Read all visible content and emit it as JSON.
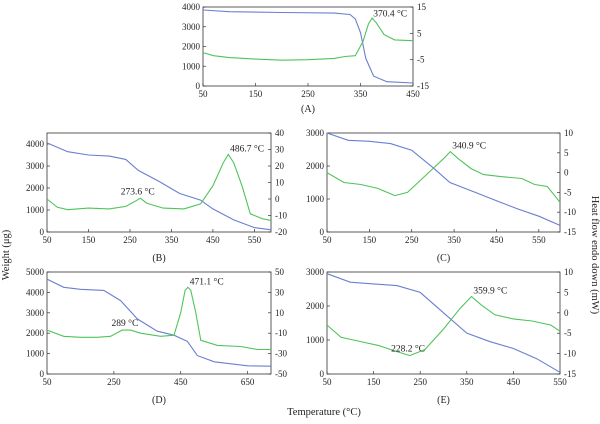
{
  "figure": {
    "y_left_label": "Weight (μg)",
    "y_right_label": "Heat flow endo down (mW)",
    "x_label": "Temperature (°C)"
  },
  "colors": {
    "weight": "#6a7fd0",
    "heatflow": "#4fc45a",
    "axis": "#333333"
  },
  "chart_data": [
    {
      "panel": "(A)",
      "type": "line",
      "x_ticks": [
        50,
        150,
        250,
        350,
        450
      ],
      "xlim": [
        50,
        450
      ],
      "yl_ticks": [
        0,
        1000,
        2000,
        3000,
        4000
      ],
      "yl_lim": [
        0,
        4000
      ],
      "yr_ticks": [
        -15,
        -5,
        5,
        15
      ],
      "yr_lim": [
        -15,
        15
      ],
      "peak_label": {
        "text": "370.4 °C",
        "x": 370.4
      },
      "series": [
        {
          "axis": "left",
          "points": [
            [
              50,
              3850
            ],
            [
              100,
              3760
            ],
            [
              200,
              3720
            ],
            [
              300,
              3690
            ],
            [
              330,
              3620
            ],
            [
              340,
              3400
            ],
            [
              350,
              2700
            ],
            [
              360,
              1400
            ],
            [
              375,
              500
            ],
            [
              400,
              220
            ],
            [
              450,
              150
            ]
          ]
        },
        {
          "axis": "right",
          "points": [
            [
              50,
              -2.3
            ],
            [
              70,
              -3.5
            ],
            [
              100,
              -4.2
            ],
            [
              150,
              -4.8
            ],
            [
              200,
              -5.2
            ],
            [
              250,
              -5.0
            ],
            [
              300,
              -4.5
            ],
            [
              320,
              -3.8
            ],
            [
              340,
              -3.5
            ],
            [
              355,
              2
            ],
            [
              365,
              8.5
            ],
            [
              372,
              10.8
            ],
            [
              380,
              9
            ],
            [
              395,
              4.5
            ],
            [
              415,
              2.5
            ],
            [
              450,
              2.2
            ]
          ]
        }
      ]
    },
    {
      "panel": "(B)",
      "type": "line",
      "x_ticks": [
        50,
        150,
        250,
        350,
        450,
        550
      ],
      "xlim": [
        50,
        590
      ],
      "yl_ticks": [
        0,
        1000,
        2000,
        3000,
        4000
      ],
      "yl_lim": [
        0,
        4500
      ],
      "yr_ticks": [
        -20,
        -10,
        0,
        10,
        20,
        30,
        40
      ],
      "yr_lim": [
        -20,
        40
      ],
      "peak_label": {
        "text": "486.7 °C",
        "x": 486.7
      },
      "peak_label2": {
        "text": "273.6 °C",
        "x": 273.6
      },
      "series": [
        {
          "axis": "left",
          "points": [
            [
              50,
              4050
            ],
            [
              100,
              3650
            ],
            [
              150,
              3500
            ],
            [
              200,
              3450
            ],
            [
              240,
              3300
            ],
            [
              270,
              2800
            ],
            [
              320,
              2300
            ],
            [
              370,
              1750
            ],
            [
              420,
              1450
            ],
            [
              450,
              1050
            ],
            [
              500,
              550
            ],
            [
              550,
              200
            ],
            [
              590,
              100
            ]
          ]
        },
        {
          "axis": "right",
          "points": [
            [
              50,
              0
            ],
            [
              75,
              -5
            ],
            [
              100,
              -6.5
            ],
            [
              150,
              -5.5
            ],
            [
              200,
              -6
            ],
            [
              240,
              -4.5
            ],
            [
              265,
              -1
            ],
            [
              275,
              0.5
            ],
            [
              290,
              -2.5
            ],
            [
              330,
              -5.5
            ],
            [
              380,
              -6
            ],
            [
              420,
              -3
            ],
            [
              450,
              8
            ],
            [
              475,
              22
            ],
            [
              487,
              27
            ],
            [
              500,
              22
            ],
            [
              520,
              8
            ],
            [
              540,
              -9
            ],
            [
              570,
              -12
            ],
            [
              590,
              -13
            ]
          ]
        }
      ]
    },
    {
      "panel": "(C)",
      "type": "line",
      "x_ticks": [
        50,
        150,
        250,
        350,
        450,
        550
      ],
      "xlim": [
        50,
        600
      ],
      "yl_ticks": [
        0,
        1000,
        2000,
        3000
      ],
      "yl_lim": [
        0,
        3000
      ],
      "yr_ticks": [
        -15,
        -10,
        -5,
        0,
        5,
        10
      ],
      "yr_lim": [
        -15,
        10
      ],
      "peak_label": {
        "text": "340.9 °C",
        "x": 340.9
      },
      "series": [
        {
          "axis": "left",
          "points": [
            [
              50,
              3000
            ],
            [
              100,
              2780
            ],
            [
              150,
              2750
            ],
            [
              200,
              2680
            ],
            [
              250,
              2480
            ],
            [
              300,
              1950
            ],
            [
              340,
              1500
            ],
            [
              400,
              1200
            ],
            [
              450,
              950
            ],
            [
              500,
              700
            ],
            [
              550,
              480
            ],
            [
              600,
              200
            ]
          ]
        },
        {
          "axis": "right",
          "points": [
            [
              50,
              0
            ],
            [
              90,
              -2.5
            ],
            [
              130,
              -3
            ],
            [
              170,
              -4
            ],
            [
              210,
              -5.8
            ],
            [
              240,
              -5
            ],
            [
              270,
              -2
            ],
            [
              300,
              1
            ],
            [
              325,
              3.5
            ],
            [
              341,
              5.3
            ],
            [
              360,
              3.5
            ],
            [
              390,
              1
            ],
            [
              420,
              -0.5
            ],
            [
              460,
              -1
            ],
            [
              510,
              -1.5
            ],
            [
              540,
              -3
            ],
            [
              570,
              -3.5
            ],
            [
              600,
              -7.5
            ]
          ]
        }
      ]
    },
    {
      "panel": "(D)",
      "type": "line",
      "x_ticks": [
        50,
        250,
        450,
        650
      ],
      "xlim": [
        50,
        720
      ],
      "yl_ticks": [
        0,
        1000,
        2000,
        3000,
        4000,
        5000
      ],
      "yl_lim": [
        0,
        5000
      ],
      "yr_ticks": [
        -50,
        -30,
        -10,
        10,
        30,
        50
      ],
      "yr_lim": [
        -50,
        50
      ],
      "peak_label": {
        "text": "471.1 °C",
        "x": 471.1
      },
      "peak_label2": {
        "text": "289 °C",
        "x": 289
      },
      "series": [
        {
          "axis": "left",
          "points": [
            [
              50,
              4650
            ],
            [
              100,
              4250
            ],
            [
              150,
              4150
            ],
            [
              220,
              4100
            ],
            [
              270,
              3600
            ],
            [
              320,
              2700
            ],
            [
              380,
              2100
            ],
            [
              430,
              1900
            ],
            [
              470,
              1600
            ],
            [
              500,
              900
            ],
            [
              550,
              600
            ],
            [
              650,
              400
            ],
            [
              720,
              380
            ]
          ]
        },
        {
          "axis": "right",
          "points": [
            [
              50,
              -7
            ],
            [
              100,
              -13
            ],
            [
              150,
              -14
            ],
            [
              200,
              -14
            ],
            [
              240,
              -13
            ],
            [
              275,
              -7
            ],
            [
              300,
              -7
            ],
            [
              330,
              -10
            ],
            [
              390,
              -13
            ],
            [
              430,
              -12
            ],
            [
              450,
              10
            ],
            [
              463,
              32
            ],
            [
              471,
              35
            ],
            [
              480,
              32
            ],
            [
              495,
              10
            ],
            [
              510,
              -17
            ],
            [
              560,
              -22
            ],
            [
              630,
              -23
            ],
            [
              680,
              -26
            ],
            [
              720,
              -26
            ]
          ]
        }
      ]
    },
    {
      "panel": "(E)",
      "type": "line",
      "x_ticks": [
        50,
        150,
        250,
        350,
        450,
        550
      ],
      "xlim": [
        50,
        550
      ],
      "yl_ticks": [
        0,
        1000,
        2000,
        3000
      ],
      "yl_lim": [
        0,
        3000
      ],
      "yr_ticks": [
        -15,
        -10,
        -5,
        0,
        5,
        10
      ],
      "yr_lim": [
        -15,
        10
      ],
      "peak_label": {
        "text": "359.9 °C",
        "x": 359.9
      },
      "peak_label2": {
        "text": "228.2 °C",
        "x": 228.2
      },
      "series": [
        {
          "axis": "left",
          "points": [
            [
              50,
              2950
            ],
            [
              100,
              2700
            ],
            [
              150,
              2650
            ],
            [
              200,
              2600
            ],
            [
              250,
              2400
            ],
            [
              300,
              1800
            ],
            [
              350,
              1200
            ],
            [
              400,
              950
            ],
            [
              450,
              750
            ],
            [
              500,
              450
            ],
            [
              550,
              50
            ]
          ]
        },
        {
          "axis": "right",
          "points": [
            [
              50,
              -3
            ],
            [
              80,
              -6
            ],
            [
              120,
              -7
            ],
            [
              160,
              -8
            ],
            [
              200,
              -9.5
            ],
            [
              228,
              -10.5
            ],
            [
              260,
              -9
            ],
            [
              300,
              -4
            ],
            [
              335,
              1
            ],
            [
              360,
              4
            ],
            [
              380,
              2
            ],
            [
              410,
              -0.5
            ],
            [
              450,
              -1.5
            ],
            [
              490,
              -2
            ],
            [
              530,
              -3
            ],
            [
              550,
              -4.5
            ]
          ]
        }
      ]
    }
  ]
}
